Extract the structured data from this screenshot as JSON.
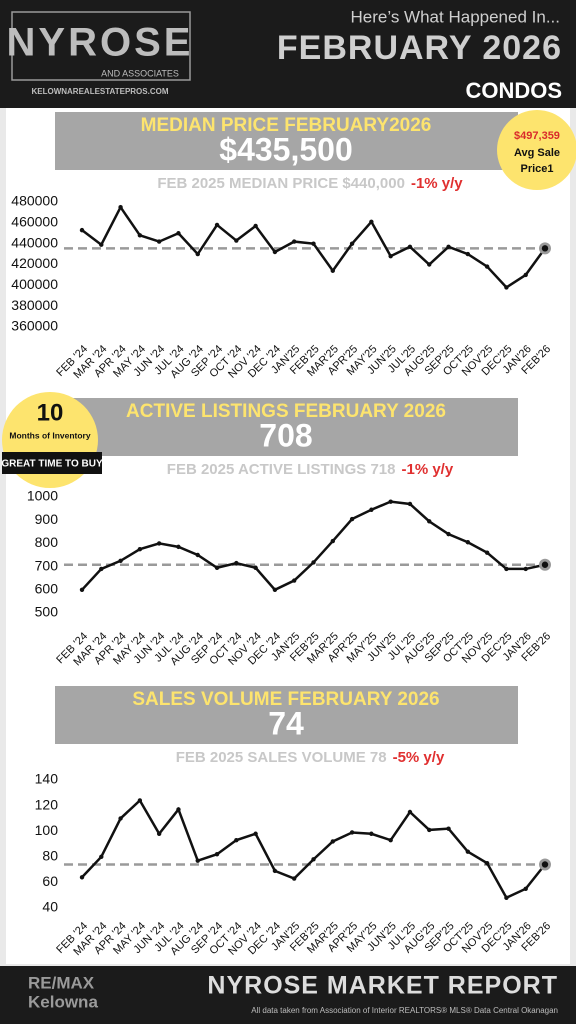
{
  "header": {
    "logo": "NYROSE",
    "logo_sub": "AND ASSOCIATES",
    "website": "KELOWNAREALESTATEPROS.COM",
    "intro": "Here’s What Happened In...",
    "month": "FEBRUARY 2026",
    "segment": "CONDOS"
  },
  "badges": {
    "avg_price": "$497,359",
    "avg_label_1": "Avg Sale",
    "avg_label_2": "Price1",
    "months": "10",
    "months_label": "Months of Inventory",
    "buy": "GREAT TIME TO BUY"
  },
  "chart_data": [
    {
      "type": "line",
      "title": "MEDIAN PRICE FEBRUARY2026",
      "headline": "$435,500",
      "subtitle": "FEB 2025 MEDIAN PRICE $440,000",
      "change": "-1% y/y",
      "categories": [
        "FEB '24",
        "MAR '24",
        "APR '24",
        "MAY '24",
        "JUN '24",
        "JUL '24",
        "AUG '24",
        "SEP '24",
        "OCT '24",
        "NOV '24",
        "DEC '24",
        "JAN'25",
        "FEB'25",
        "MAR'25",
        "APR'25",
        "MAY'25",
        "JUN'25",
        "JUL'25",
        "AUG'25",
        "SEP'25",
        "OCT'25",
        "NOV'25",
        "DEC'25",
        "JAN'26",
        "FEB'26"
      ],
      "values": [
        453000,
        439000,
        475000,
        448000,
        442000,
        450000,
        430000,
        458000,
        443000,
        457000,
        432000,
        442000,
        440000,
        414000,
        440000,
        461000,
        428000,
        437000,
        420000,
        437000,
        430000,
        418000,
        398000,
        410000,
        435500
      ],
      "reference_line": 435500,
      "color": "#111111",
      "ylim": [
        350000,
        490000
      ],
      "yticks": [
        360000,
        380000,
        400000,
        420000,
        440000,
        460000,
        480000
      ]
    },
    {
      "type": "line",
      "title": "ACTIVE LISTINGS FEBRUARY 2026",
      "headline": "708",
      "subtitle": "FEB 2025 ACTIVE LISTINGS 718",
      "change": "-1% y/y",
      "categories": [
        "FEB '24",
        "MAR '24",
        "APR '24",
        "MAY '24",
        "JUN '24",
        "JUL '24",
        "AUG '24",
        "SEP '24",
        "OCT '24",
        "NOV '24",
        "DEC '24",
        "JAN'25",
        "FEB'25",
        "MAR'25",
        "APR'25",
        "MAY'25",
        "JUN'25",
        "JUL'25",
        "AUG'25",
        "SEP'25",
        "OCT'25",
        "NOV'25",
        "DEC'25",
        "JAN'26",
        "FEB'26"
      ],
      "values": [
        600,
        690,
        725,
        775,
        800,
        785,
        750,
        695,
        715,
        695,
        600,
        640,
        718,
        810,
        905,
        945,
        980,
        970,
        895,
        840,
        805,
        760,
        690,
        690,
        708
      ],
      "reference_line": 708,
      "color": "#111111",
      "ylim": [
        450,
        1050
      ],
      "yticks": [
        500,
        600,
        700,
        800,
        900,
        1000
      ]
    },
    {
      "type": "line",
      "title": "SALES VOLUME FEBRUARY 2026",
      "headline": "74",
      "subtitle": "FEB 2025 SALES VOLUME 78",
      "change": "-5% y/y",
      "categories": [
        "FEB '24",
        "MAR '24",
        "APR '24",
        "MAY '24",
        "JUN '24",
        "JUL '24",
        "AUG '24",
        "SEP '24",
        "OCT '24",
        "NOV '24",
        "DEC '24",
        "JAN'25",
        "FEB'25",
        "MAR'25",
        "APR'25",
        "MAY'25",
        "JUN'25",
        "JUL'25",
        "AUG'25",
        "SEP'25",
        "OCT'25",
        "NOV'25",
        "DEC'25",
        "JAN'26",
        "FEB'26"
      ],
      "values": [
        64,
        80,
        110,
        124,
        98,
        117,
        77,
        82,
        93,
        98,
        69,
        63,
        78,
        92,
        99,
        98,
        93,
        115,
        101,
        102,
        84,
        75,
        48,
        55,
        74
      ],
      "reference_line": 74,
      "color": "#111111",
      "ylim": [
        35,
        145
      ],
      "yticks": [
        40,
        60,
        80,
        100,
        120,
        140
      ]
    }
  ],
  "footer": {
    "brand": "RE/MAX",
    "brand_sub": "Kelowna",
    "report": "NYROSE MARKET REPORT",
    "source": "All data taken from Association of Interior REALTORS® MLS® Data Central Okanagan"
  }
}
